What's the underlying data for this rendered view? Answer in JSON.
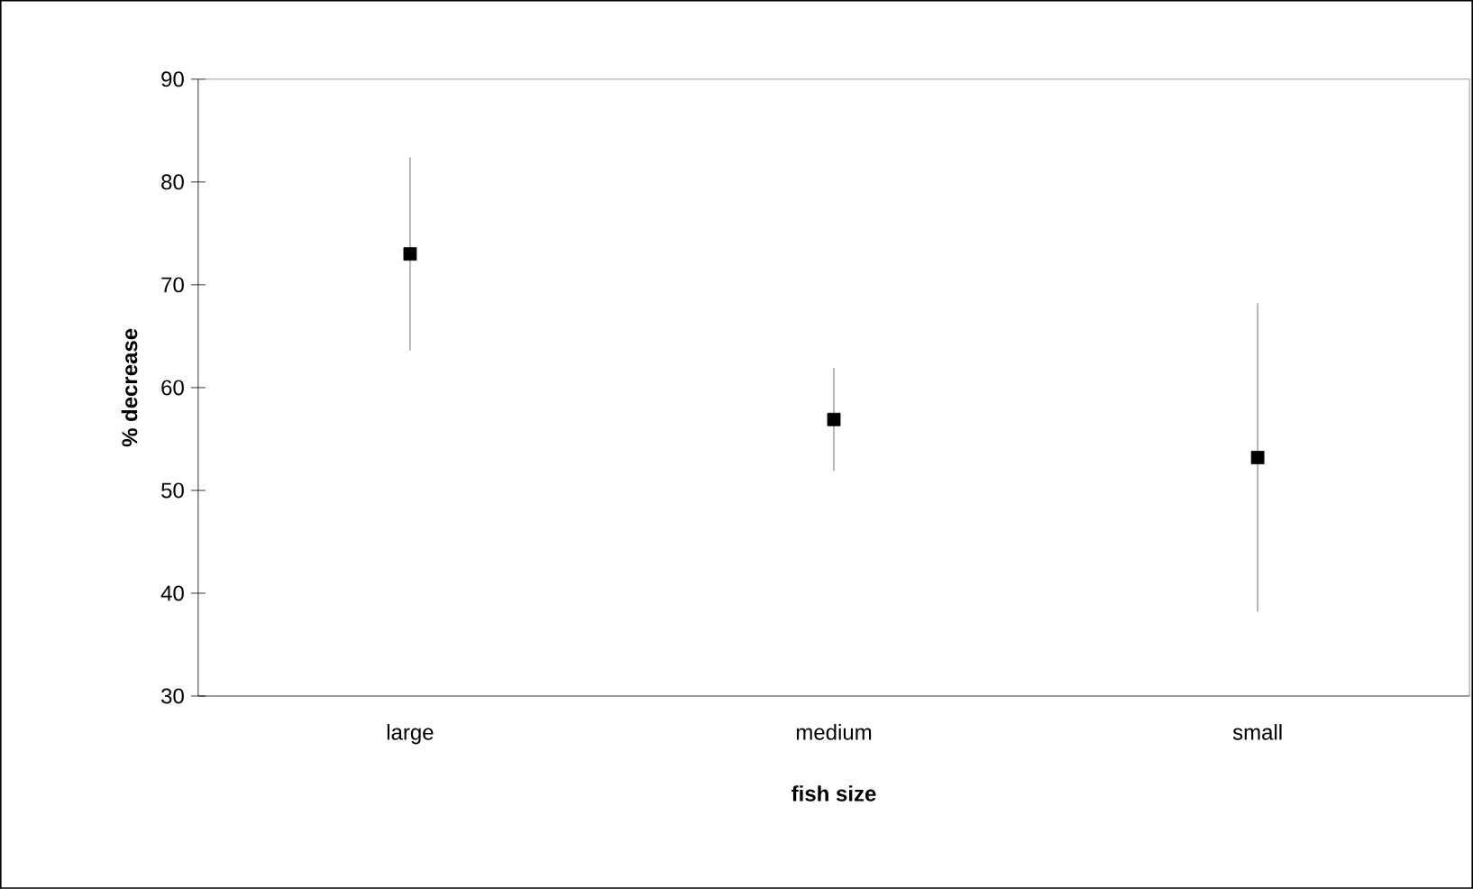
{
  "chart_data": {
    "type": "scatter",
    "xlabel": "fish size",
    "ylabel": "% decrease",
    "categories": [
      "large",
      "medium",
      "small"
    ],
    "values": [
      73.0,
      56.9,
      53.2
    ],
    "errors": [
      9.4,
      5.0,
      15.0
    ],
    "color": "#000000",
    "marker": "square",
    "ylim": [
      30,
      90
    ],
    "yticks": [
      30,
      40,
      50,
      60,
      70,
      80,
      90
    ],
    "grid": false
  }
}
